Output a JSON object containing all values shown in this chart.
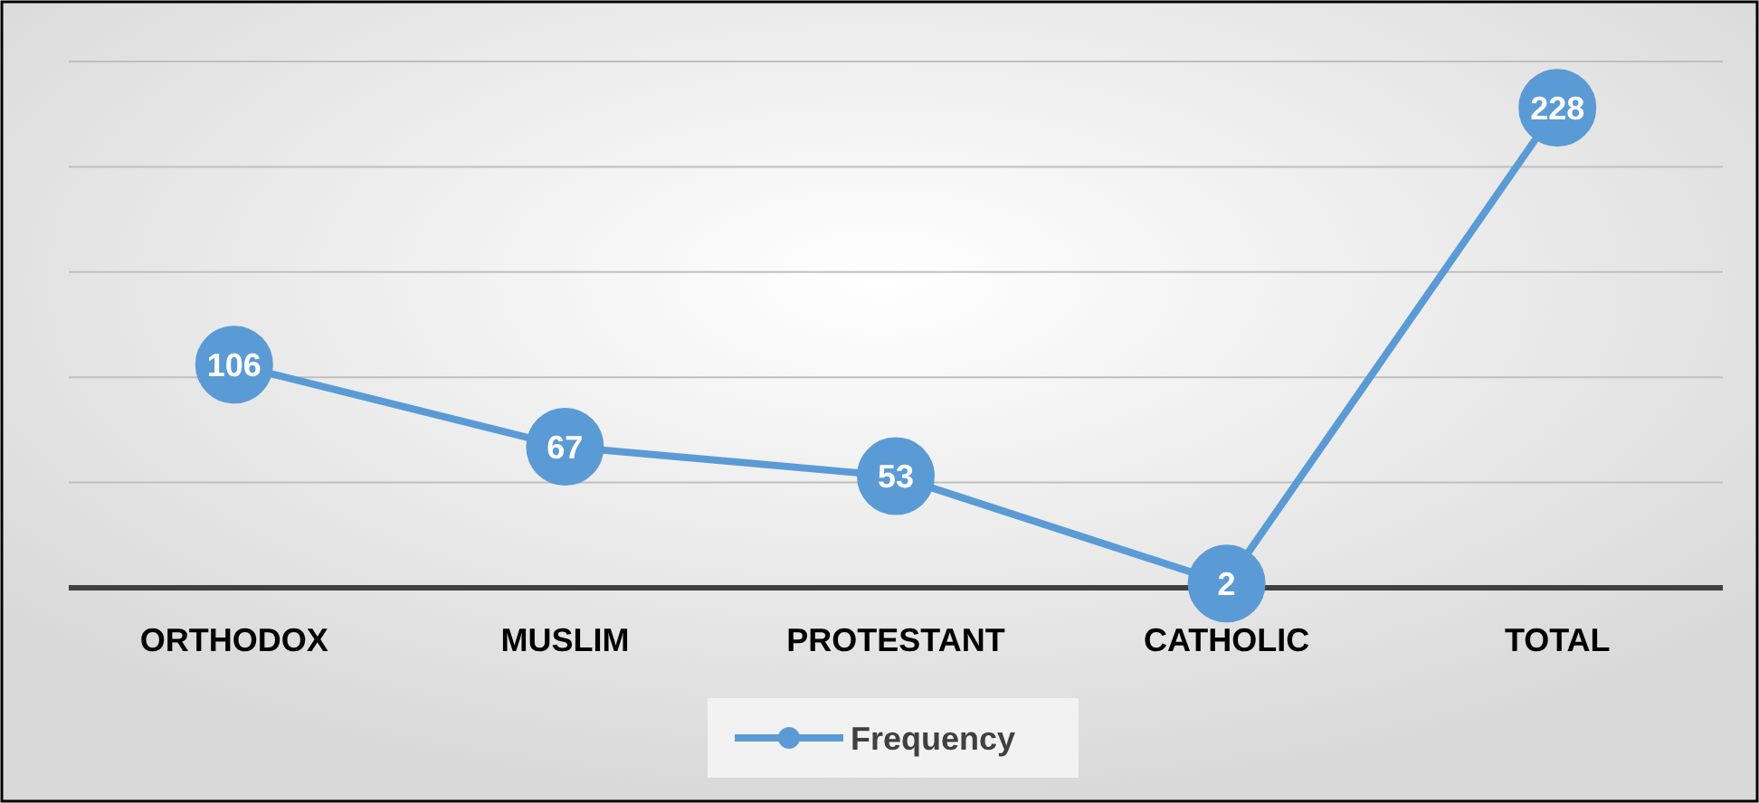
{
  "chart_data": {
    "type": "line",
    "categories": [
      "ORTHODOX",
      "MUSLIM",
      "PROTESTANT",
      "CATHOLIC",
      "TOTAL"
    ],
    "series": [
      {
        "name": "Frequency",
        "color": "#5b9bd5",
        "values": [
          106,
          67,
          53,
          2,
          228
        ]
      }
    ],
    "ylim": [
      0,
      250
    ],
    "yticks": [
      {
        "value": 0,
        "label": null
      },
      {
        "value": 50,
        "label": null
      },
      {
        "value": 100,
        "label": null
      },
      {
        "value": 150,
        "label": null
      },
      {
        "value": 200,
        "label": null
      },
      {
        "value": 250,
        "label": null
      }
    ],
    "tick_labels": "x",
    "grid": "y",
    "legend": "bottom",
    "marker": "circle",
    "line_style": "solid",
    "data_labels": true
  }
}
